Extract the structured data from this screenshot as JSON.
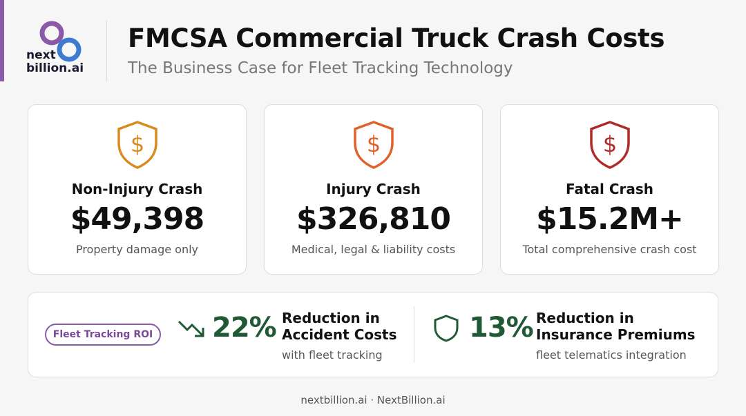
{
  "logo": {
    "line1": "next",
    "line2": "billion.ai"
  },
  "header": {
    "title": "FMCSA Commercial Truck Crash Costs",
    "subtitle": "The Business Case for Fleet Tracking Technology"
  },
  "cards": [
    {
      "title": "Non-Injury Crash",
      "value": "$49,398",
      "description": "Property damage only"
    },
    {
      "title": "Injury Crash",
      "value": "$326,810",
      "description": "Medical, legal & liability costs"
    },
    {
      "title": "Fatal Crash",
      "value": "$15.2M+",
      "description": "Total comprehensive crash cost"
    }
  ],
  "roi": {
    "badge": "Fleet Tracking ROI",
    "stats": [
      {
        "value": "22%",
        "label_lines": [
          "Reduction in",
          "Accident Costs"
        ],
        "sub": "with fleet tracking"
      },
      {
        "value": "13%",
        "label_lines": [
          "Reduction in",
          "Insurance Premiums"
        ],
        "sub": "fleet telematics integration"
      }
    ]
  },
  "footer": "nextbillion.ai · NextBillion.ai"
}
